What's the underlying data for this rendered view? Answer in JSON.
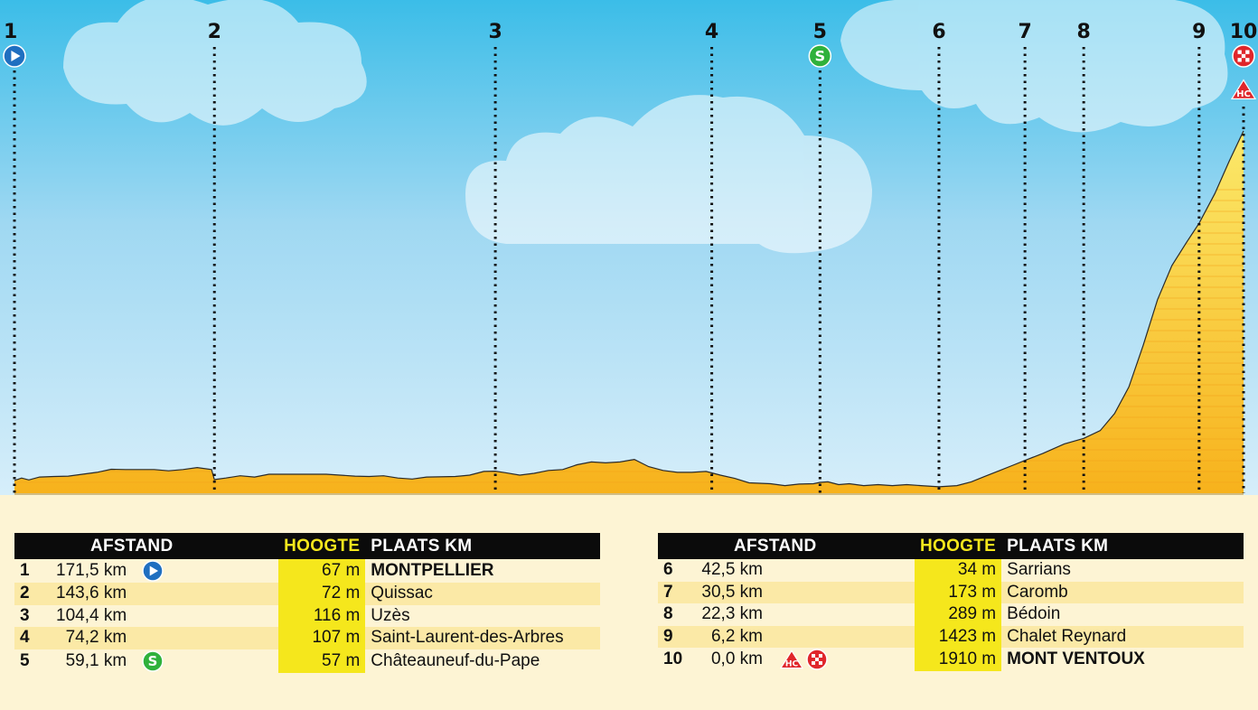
{
  "chart_data": {
    "type": "area",
    "title": "",
    "xlabel": "",
    "ylabel": "",
    "colors": {
      "sky_top": "#3bbde8",
      "sky_bottom": "#d6eefa",
      "profile_top": "#fbe96a",
      "profile_bottom": "#f7b21c",
      "outline": "#2a2a2a",
      "hc_red": "#e0262b",
      "start_blue": "#1f6fc0",
      "sprint_green": "#2fb13b",
      "header_yellow": "#f5e71c"
    },
    "markers": [
      {
        "label": "1",
        "km_to_go": 171.5,
        "icon": "start-icon"
      },
      {
        "label": "2",
        "km_to_go": 143.6
      },
      {
        "label": "3",
        "km_to_go": 104.4
      },
      {
        "label": "4",
        "km_to_go": 74.2
      },
      {
        "label": "5",
        "km_to_go": 59.1,
        "icon": "sprint-icon"
      },
      {
        "label": "6",
        "km_to_go": 42.5
      },
      {
        "label": "7",
        "km_to_go": 30.5
      },
      {
        "label": "8",
        "km_to_go": 22.3
      },
      {
        "label": "9",
        "km_to_go": 6.2
      },
      {
        "label": "10",
        "km_to_go": 0.0,
        "icon": "finish-icon",
        "category_icon": "hc-climb-icon"
      }
    ],
    "profile": [
      [
        171.5,
        67
      ],
      [
        170.5,
        80
      ],
      [
        169.5,
        70
      ],
      [
        168,
        85
      ],
      [
        166,
        88
      ],
      [
        164,
        90
      ],
      [
        162,
        100
      ],
      [
        160,
        110
      ],
      [
        158,
        126
      ],
      [
        156,
        125
      ],
      [
        152,
        125
      ],
      [
        150,
        118
      ],
      [
        148,
        125
      ],
      [
        146,
        135
      ],
      [
        144,
        125
      ],
      [
        143.6,
        72
      ],
      [
        142,
        80
      ],
      [
        140,
        92
      ],
      [
        138,
        85
      ],
      [
        136,
        100
      ],
      [
        132,
        100
      ],
      [
        128,
        100
      ],
      [
        124,
        90
      ],
      [
        122,
        88
      ],
      [
        120,
        92
      ],
      [
        118,
        80
      ],
      [
        116,
        75
      ],
      [
        114,
        85
      ],
      [
        110,
        88
      ],
      [
        108,
        95
      ],
      [
        106,
        115
      ],
      [
        104.4,
        116
      ],
      [
        103,
        108
      ],
      [
        101,
        95
      ],
      [
        99,
        105
      ],
      [
        97,
        120
      ],
      [
        95,
        125
      ],
      [
        93,
        150
      ],
      [
        91,
        165
      ],
      [
        89,
        160
      ],
      [
        87,
        165
      ],
      [
        85,
        178
      ],
      [
        83,
        140
      ],
      [
        81,
        120
      ],
      [
        79,
        110
      ],
      [
        77,
        110
      ],
      [
        75,
        115
      ],
      [
        74.2,
        107
      ],
      [
        73,
        95
      ],
      [
        71,
        78
      ],
      [
        69,
        55
      ],
      [
        66,
        50
      ],
      [
        64,
        40
      ],
      [
        62,
        48
      ],
      [
        60,
        50
      ],
      [
        59.1,
        57
      ],
      [
        58,
        60
      ],
      [
        56.5,
        45
      ],
      [
        55,
        50
      ],
      [
        53,
        40
      ],
      [
        51,
        45
      ],
      [
        49,
        40
      ],
      [
        47,
        45
      ],
      [
        45,
        40
      ],
      [
        43,
        35
      ],
      [
        42.5,
        34
      ],
      [
        40,
        40
      ],
      [
        38,
        60
      ],
      [
        36,
        90
      ],
      [
        34,
        120
      ],
      [
        32,
        150
      ],
      [
        30.5,
        173
      ],
      [
        28,
        210
      ],
      [
        25,
        260
      ],
      [
        22.3,
        289
      ],
      [
        20,
        330
      ],
      [
        18,
        420
      ],
      [
        16,
        560
      ],
      [
        14,
        780
      ],
      [
        12,
        1020
      ],
      [
        10,
        1200
      ],
      [
        8,
        1320
      ],
      [
        6.2,
        1423
      ],
      [
        4,
        1580
      ],
      [
        2,
        1750
      ],
      [
        0,
        1910
      ]
    ],
    "x_range_km": [
      171.5,
      0
    ],
    "y_range_m": [
      0,
      2600
    ],
    "table": {
      "headers": {
        "afstand": "AFSTAND",
        "hoogte": "HOOGTE",
        "plaats": "PLAATS KM"
      },
      "rows": [
        {
          "num": "1",
          "dist": "171,5 km",
          "icon": "start-icon",
          "alt": "67 m",
          "place": "MONTPELLIER",
          "bold": true
        },
        {
          "num": "2",
          "dist": "143,6 km",
          "icon": "",
          "alt": "72 m",
          "place": "Quissac",
          "bold": false
        },
        {
          "num": "3",
          "dist": "104,4 km",
          "icon": "",
          "alt": "116 m",
          "place": "Uzès",
          "bold": false
        },
        {
          "num": "4",
          "dist": "74,2 km",
          "icon": "",
          "alt": "107 m",
          "place": "Saint-Laurent-des-Arbres",
          "bold": false
        },
        {
          "num": "5",
          "dist": "59,1 km",
          "icon": "sprint-icon",
          "alt": "57 m",
          "place": "Châteauneuf-du-Pape",
          "bold": false
        },
        {
          "num": "6",
          "dist": "42,5 km",
          "icon": "",
          "alt": "34 m",
          "place": "Sarrians",
          "bold": false
        },
        {
          "num": "7",
          "dist": "30,5 km",
          "icon": "",
          "alt": "173 m",
          "place": "Caromb",
          "bold": false
        },
        {
          "num": "8",
          "dist": "22,3 km",
          "icon": "",
          "alt": "289 m",
          "place": "Bédoin",
          "bold": false
        },
        {
          "num": "9",
          "dist": "6,2 km",
          "icon": "",
          "alt": "1423 m",
          "place": "Chalet Reynard",
          "bold": false
        },
        {
          "num": "10",
          "dist": "0,0 km",
          "icon": "hc-finish-icons",
          "alt": "1910 m",
          "place": "MONT VENTOUX",
          "bold": true
        }
      ]
    }
  }
}
